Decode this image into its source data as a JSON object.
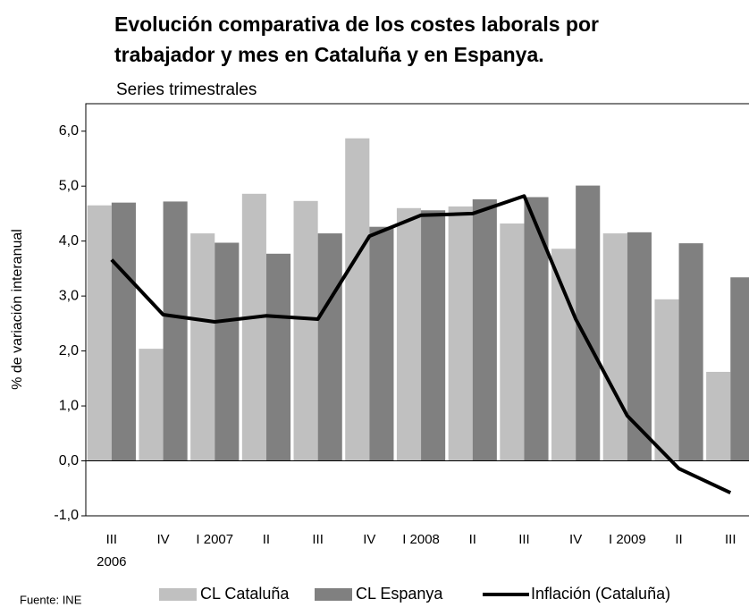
{
  "chart_data": {
    "type": "bar_line",
    "title": "Evolución comparativa de los costes laborals por trabajador y mes en Cataluña y en Espanya.",
    "subtitle": "Series trimestrales",
    "y_label": "% de variación interanual",
    "source": "Fuente: INE",
    "categories": [
      "III\n2006",
      "IV",
      "I 2007",
      "II",
      "III",
      "IV",
      "I 2008",
      "II",
      "III",
      "IV",
      "I 2009",
      "II",
      "III"
    ],
    "series": [
      {
        "name": "CL Cataluña",
        "kind": "bar",
        "color": "#c0c0c0",
        "values": [
          4.65,
          2.04,
          4.14,
          4.86,
          4.73,
          5.87,
          4.6,
          4.63,
          4.32,
          3.86,
          4.14,
          2.94,
          1.62
        ]
      },
      {
        "name": "CL Espanya",
        "kind": "bar",
        "color": "#808080",
        "values": [
          4.7,
          4.72,
          3.97,
          3.77,
          4.14,
          4.26,
          4.56,
          4.76,
          4.8,
          5.01,
          4.16,
          3.96,
          3.34
        ]
      },
      {
        "name": "Inflación (Cataluña)",
        "kind": "line",
        "color": "#000000",
        "values": [
          3.66,
          2.66,
          2.53,
          2.64,
          2.58,
          4.09,
          4.47,
          4.5,
          4.82,
          2.58,
          0.82,
          -0.14,
          -0.58
        ]
      }
    ],
    "ylim": [
      -1,
      6.5
    ],
    "yticks": [
      {
        "value": -1,
        "label": "-1,0"
      },
      {
        "value": 0,
        "label": "0,0"
      },
      {
        "value": 1,
        "label": "1,0"
      },
      {
        "value": 2,
        "label": "2,0"
      },
      {
        "value": 3,
        "label": "3,0"
      },
      {
        "value": 4,
        "label": "4,0"
      },
      {
        "value": 5,
        "label": "5,0"
      },
      {
        "value": 6,
        "label": "6,0"
      }
    ],
    "grid": false,
    "legend": "bottom"
  }
}
